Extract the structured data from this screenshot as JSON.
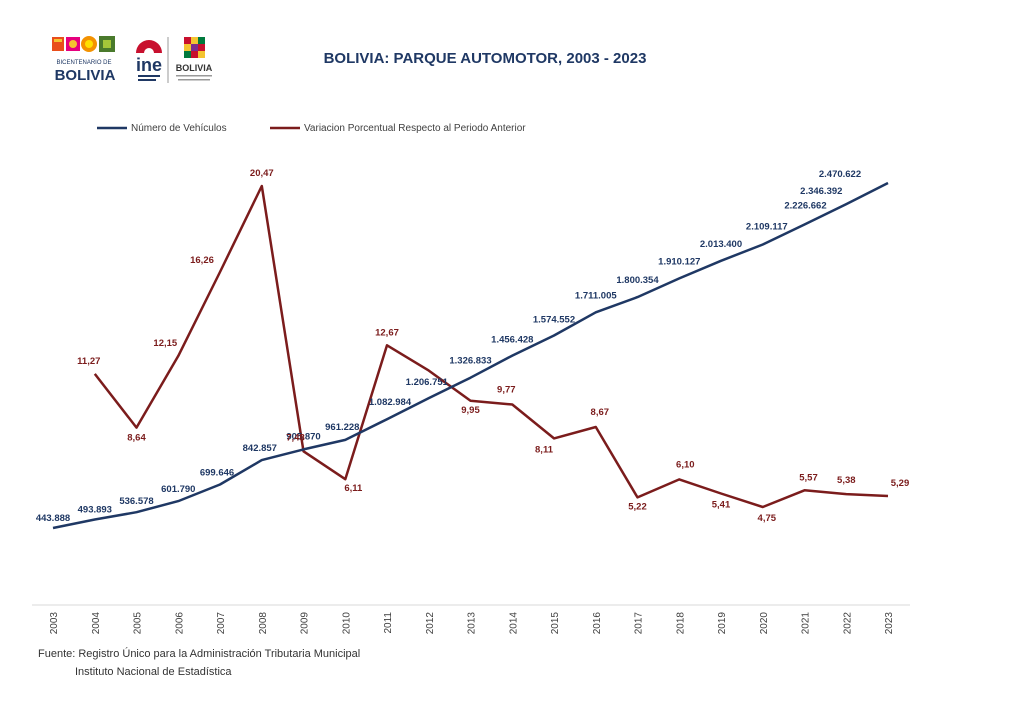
{
  "logos": {
    "bicentenario_small": "BICENTENARIO DE",
    "bicentenario_big": "BOLIVIA",
    "ine_text": "ine",
    "estado_text": "BOLIVIA"
  },
  "source": {
    "line1": "Fuente: Registro Único para la Administración Tributaria Municipal",
    "line2": "Instituto Nacional de Estadística"
  },
  "chart_data": {
    "type": "line",
    "title": "BOLIVIA: PARQUE AUTOMOTOR, 2003 - 2023",
    "legend_position": "top-left",
    "grid": false,
    "x": [
      "2003",
      "2004",
      "2005",
      "2006",
      "2007",
      "2008",
      "2009",
      "2010",
      "2011",
      "2012",
      "2013",
      "2014",
      "2015",
      "2016",
      "2017",
      "2018",
      "2019",
      "2020",
      "2021",
      "2022",
      "2023"
    ],
    "series": [
      {
        "name": "Número de Vehículos",
        "color": "#1f3864",
        "values": [
          443888,
          493893,
          536578,
          601790,
          699646,
          842857,
          905870,
          961228,
          1082984,
          1206751,
          1326833,
          1456428,
          1574552,
          1711005,
          1800354,
          1910127,
          2013400,
          2109117,
          2226662,
          2346392,
          2470622
        ],
        "labels": [
          "443.888",
          "493.893",
          "536.578",
          "601.790",
          "699.646",
          "842.857",
          "905.870",
          "961.228",
          "1.082.984",
          "1.206.751",
          "1.326.833",
          "1.456.428",
          "1.574.552",
          "1.711.005",
          "1.800.354",
          "1.910.127",
          "2.013.400",
          "2.109.117",
          "2.226.662",
          "2.346.392",
          "2.470.622"
        ]
      },
      {
        "name": "Variacion Porcentual Respecto al Periodo Anterior",
        "color": "#7b1c1c",
        "values": [
          null,
          11.27,
          8.64,
          12.15,
          16.26,
          20.47,
          7.48,
          6.11,
          12.67,
          11.43,
          9.95,
          9.77,
          8.11,
          8.67,
          5.22,
          6.1,
          5.41,
          4.75,
          5.57,
          5.38,
          5.29
        ],
        "labels": [
          null,
          "11,27",
          "8,64",
          "12,15",
          "16,26",
          "20,47",
          "7,48",
          "6,11",
          "12,67",
          null,
          "9,95",
          "9,77",
          "8,11",
          "8,67",
          "5,22",
          "6,10",
          "5,41",
          "4,75",
          "5,57",
          "5,38",
          "5,29"
        ]
      }
    ]
  }
}
